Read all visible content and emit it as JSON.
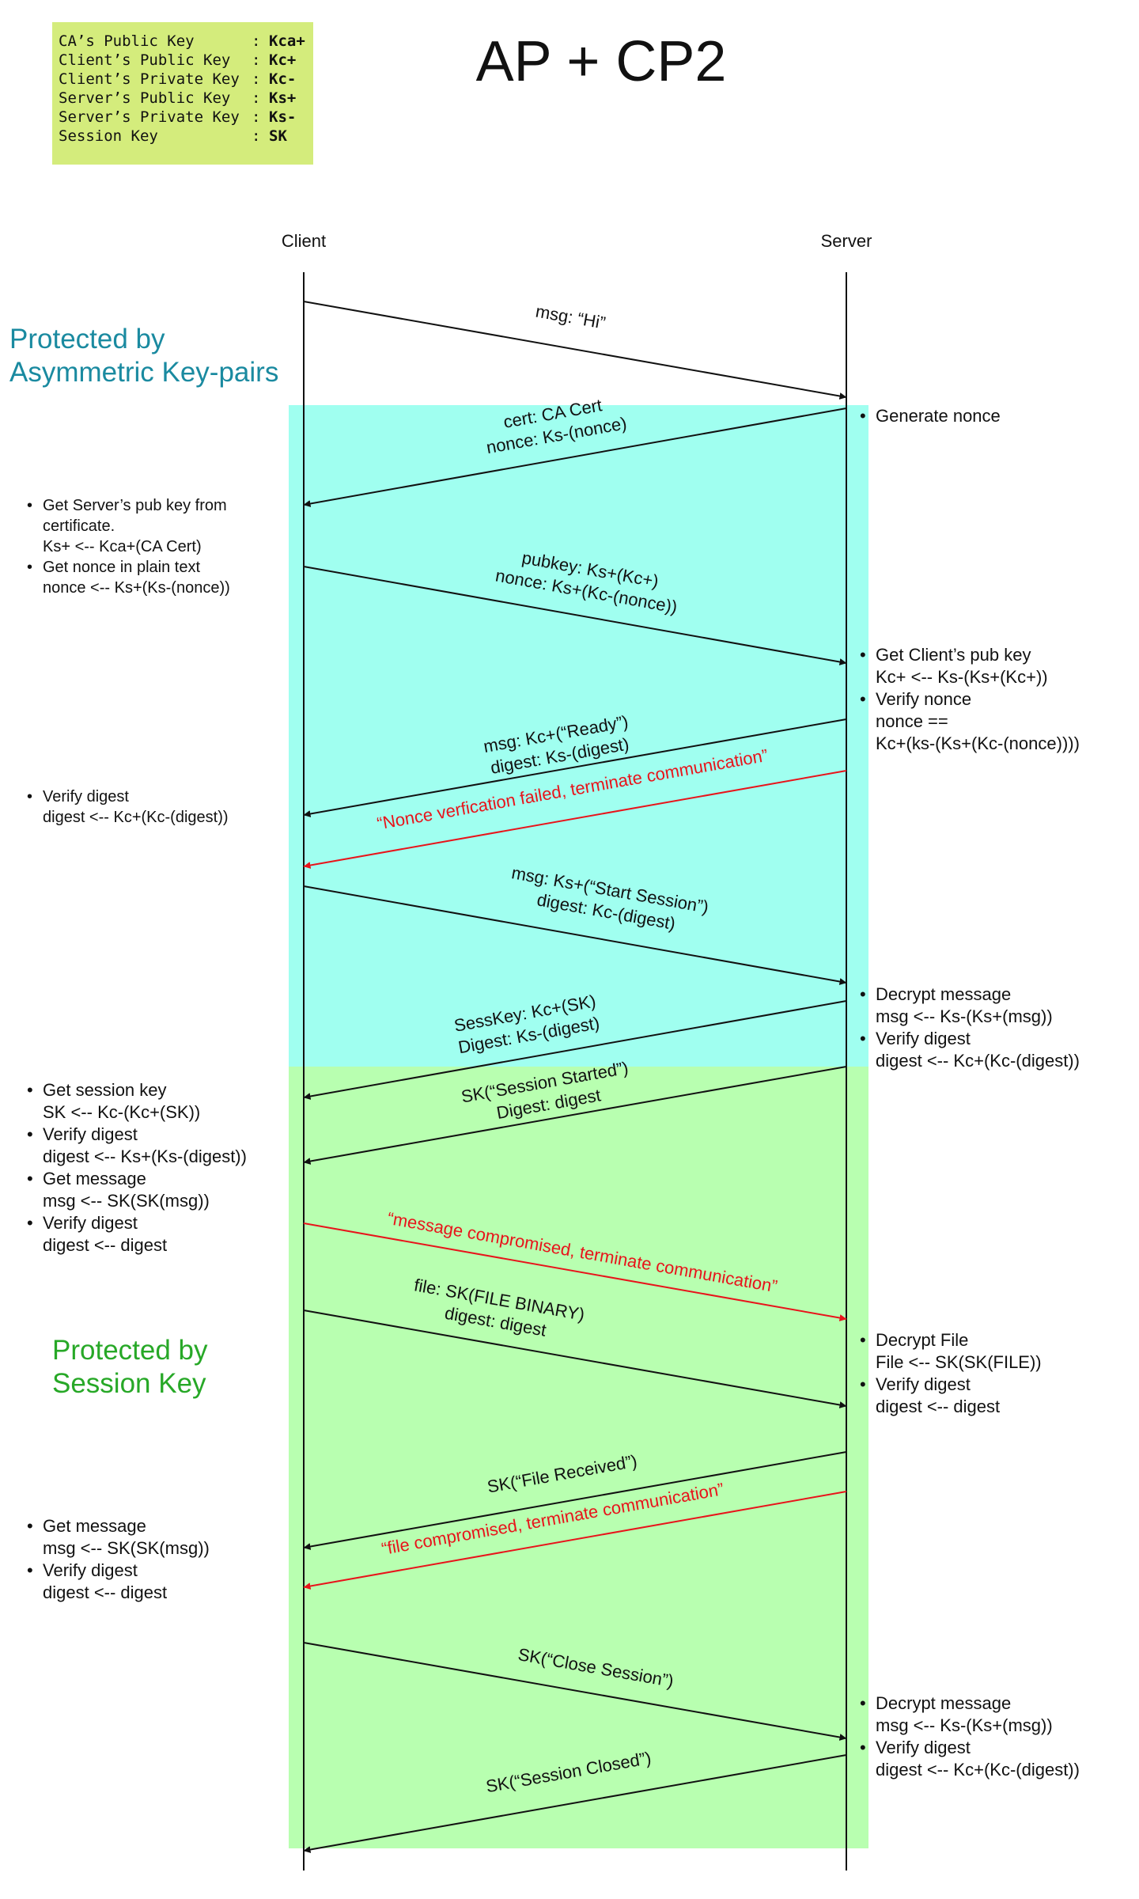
{
  "title": "AP + CP2",
  "colors": {
    "legend_bg": "#d4ec7c",
    "asym_region": "#a0fff0",
    "session_region": "#b8ffb0",
    "asym_label": "#1a8aa0",
    "session_label": "#27a827",
    "error": "#e8141b",
    "line": "#111111"
  },
  "legend": [
    {
      "name": "CA’s Public Key     ",
      "value": "Kca+"
    },
    {
      "name": "Client’s Public Key ",
      "value": "Kc+"
    },
    {
      "name": "Client’s Private Key",
      "value": "Kc-"
    },
    {
      "name": "Server’s Public Key ",
      "value": "Ks+"
    },
    {
      "name": "Server’s Private Key",
      "value": "Ks-"
    },
    {
      "name": "Session Key         ",
      "value": "SK"
    }
  ],
  "participants": {
    "client": "Client",
    "server": "Server"
  },
  "regions": {
    "asym": [
      "Protected by",
      "Asymmetric Key-pairs"
    ],
    "session": [
      "Protected by",
      "Session Key"
    ]
  },
  "messages": [
    {
      "id": "hi",
      "lines": [
        "msg: “Hi”"
      ],
      "error": false
    },
    {
      "id": "cert",
      "lines": [
        "cert: CA Cert",
        "nonce: Ks-(nonce)"
      ],
      "error": false
    },
    {
      "id": "pubkey",
      "lines": [
        "pubkey: Ks+(Kc+)",
        "nonce: Ks+(Kc-(nonce))"
      ],
      "error": false
    },
    {
      "id": "ready",
      "lines": [
        "msg: Kc+(“Ready”)",
        "digest: Ks-(digest)"
      ],
      "error": false
    },
    {
      "id": "nonce-fail",
      "lines": [
        "“Nonce verfication failed, terminate communication”"
      ],
      "error": true
    },
    {
      "id": "start-session",
      "lines": [
        "msg: Ks+(“Start Session”)",
        "digest: Kc-(digest)"
      ],
      "error": false
    },
    {
      "id": "sesskey",
      "lines": [
        "SessKey: Kc+(SK)",
        "Digest: Ks-(digest)"
      ],
      "error": false
    },
    {
      "id": "session-started",
      "lines": [
        "SK(“Session Started”)",
        "Digest: digest"
      ],
      "error": false
    },
    {
      "id": "msg-compromised",
      "lines": [
        "“message compromised, terminate communication”"
      ],
      "error": true
    },
    {
      "id": "file",
      "lines": [
        "file: SK(FILE BINARY)",
        "digest: digest"
      ],
      "error": false
    },
    {
      "id": "file-received",
      "lines": [
        "SK(“File Received”)"
      ],
      "error": false
    },
    {
      "id": "file-compromised",
      "lines": [
        "“file compromised, terminate communication”"
      ],
      "error": true
    },
    {
      "id": "close-session",
      "lines": [
        "SK(“Close Session”)"
      ],
      "error": false
    },
    {
      "id": "session-closed",
      "lines": [
        "SK(“Session Closed”)"
      ],
      "error": false
    }
  ],
  "client_notes": [
    {
      "id": "cert-check",
      "items": [
        [
          "Get Server’s pub key from",
          "certificate.",
          "Ks+ <-- Kca+(CA Cert)"
        ],
        [
          "Get nonce in plain text",
          "nonce <-- Ks+(Ks-(nonce))"
        ]
      ]
    },
    {
      "id": "verify-ready",
      "items": [
        [
          "Verify digest",
          "digest <-- Kc+(Kc-(digest))"
        ]
      ]
    },
    {
      "id": "session-setup",
      "items": [
        [
          "Get session key",
          "SK <-- Kc-(Kc+(SK))"
        ],
        [
          "Verify digest",
          "digest <-- Ks+(Ks-(digest))"
        ],
        [
          "Get message",
          "msg <-- SK(SK(msg))"
        ],
        [
          "Verify digest",
          "digest <-- digest"
        ]
      ]
    },
    {
      "id": "file-ack",
      "items": [
        [
          "Get message",
          "msg <-- SK(SK(msg))"
        ],
        [
          "Verify digest",
          "digest <-- digest"
        ]
      ]
    }
  ],
  "server_notes": [
    {
      "id": "nonce",
      "items": [
        [
          "Generate nonce"
        ]
      ]
    },
    {
      "id": "client-key",
      "items": [
        [
          "Get Client’s pub key",
          "Kc+ <-- Ks-(Ks+(Kc+))"
        ],
        [
          "Verify nonce",
          "nonce ==",
          "Kc+(ks-(Ks+(Kc-(nonce))))"
        ]
      ]
    },
    {
      "id": "start",
      "items": [
        [
          "Decrypt message",
          "msg <-- Ks-(Ks+(msg))"
        ],
        [
          "Verify digest",
          "digest <-- Kc+(Kc-(digest))"
        ]
      ]
    },
    {
      "id": "file",
      "items": [
        [
          "Decrypt File",
          "File <-- SK(SK(FILE))"
        ],
        [
          "Verify digest",
          "digest <-- digest"
        ]
      ]
    },
    {
      "id": "close",
      "items": [
        [
          "Decrypt message",
          "msg <-- Ks-(Ks+(msg))"
        ],
        [
          "Verify digest",
          "digest <-- Kc+(Kc-(digest))"
        ]
      ]
    }
  ]
}
